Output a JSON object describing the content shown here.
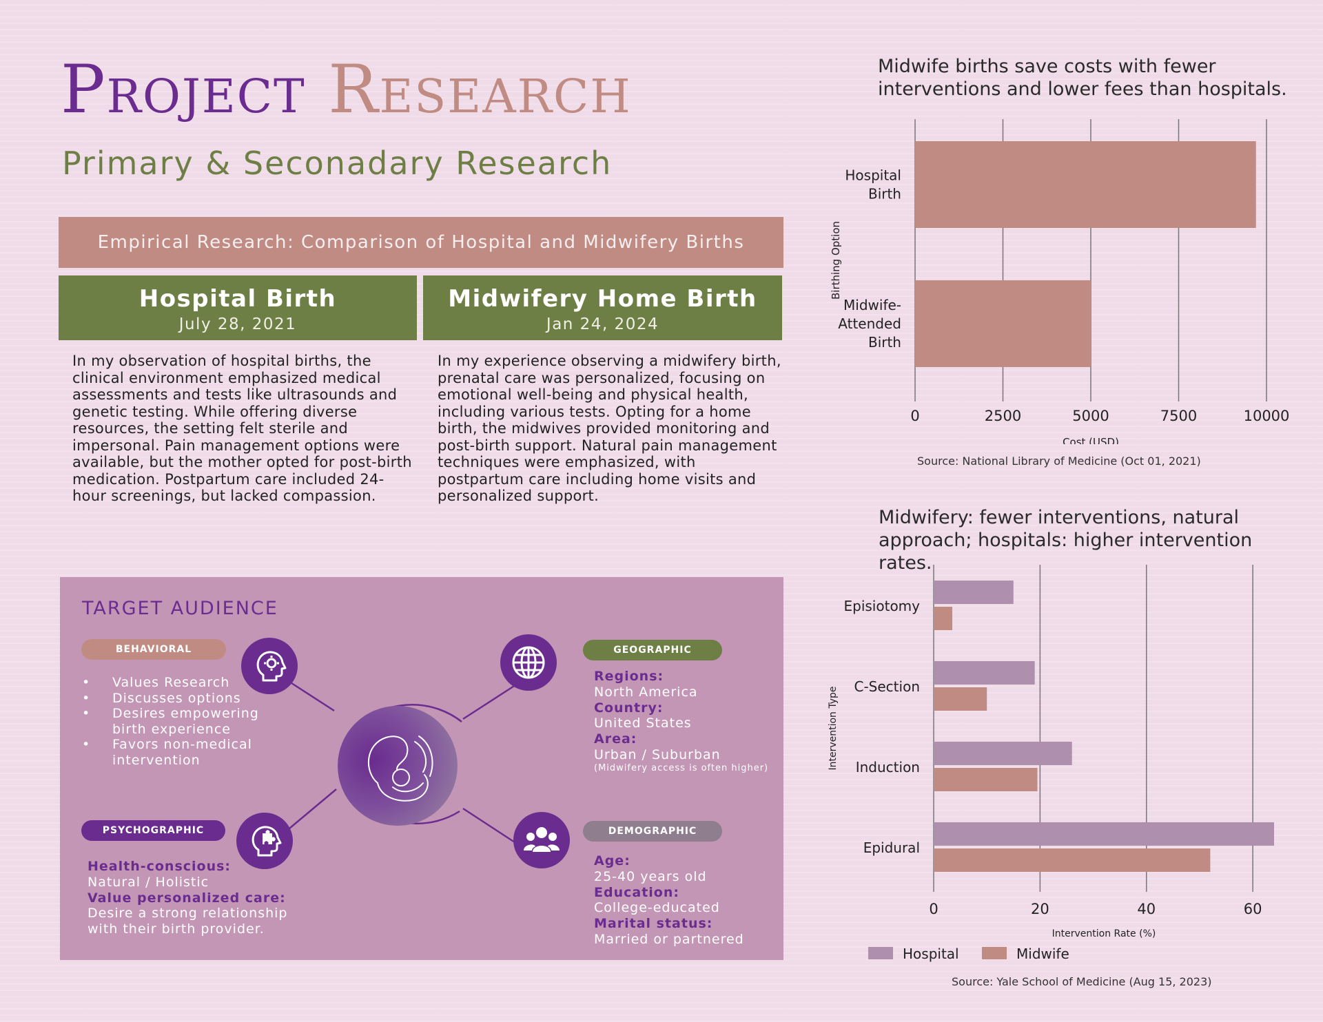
{
  "header": {
    "title_word1": "Project",
    "title_word2": "Research",
    "subtitle": "Primary & Seconadary Research"
  },
  "empirical": {
    "banner": "Empirical Research: Comparison of Hospital and Midwifery Births",
    "hospital": {
      "heading": "Hospital Birth",
      "date": "July 28, 2021",
      "text": "In my observation of hospital births, the clinical environment emphasized medical assessments and tests like ultrasounds and genetic testing. While offering diverse resources, the setting felt sterile and impersonal. Pain management options were available, but the mother opted for post-birth medication. Postpartum care included 24-hour screenings, but lacked compassion."
    },
    "midwifery": {
      "heading": "Midwifery Home Birth",
      "date": "Jan 24, 2024",
      "text": "In my experience observing a midwifery birth, prenatal care was personalized, focusing on emotional well-being and physical health, including various tests. Opting for a home birth, the midwives provided monitoring and post-birth support. Natural pain management techniques were emphasized, with postpartum care including home visits and personalized support."
    }
  },
  "target_audience": {
    "title": "TARGET AUDIENCE",
    "behavioral": {
      "label": "BEHAVIORAL",
      "items": [
        "Values Research",
        "Discusses options",
        "Desires empowering birth experience",
        "Favors non-medical intervention"
      ]
    },
    "geographic": {
      "label": "GEOGRAPHIC",
      "regions_label": "Regions:",
      "regions": "North America",
      "country_label": "Country:",
      "country": "United States",
      "area_label": "Area:",
      "area": "Urban / Suburban",
      "note": "(Midwifery access is often higher)"
    },
    "psychographic": {
      "label": "PSYCHOGRAPHIC",
      "health_label": "Health-conscious:",
      "health": "Natural / Holistic",
      "value_label": "Value personalized care:",
      "value": "Desire a strong relationship with their birth provider."
    },
    "demographic": {
      "label": "DEMOGRAPHIC",
      "age_label": "Age:",
      "age": "25-40 years old",
      "education_label": "Education:",
      "education": "College-educated",
      "marital_label": "Marital status:",
      "marital": "Married or partnered"
    },
    "icons": [
      "gear-head-icon",
      "globe-icon",
      "puzzle-head-icon",
      "group-icon",
      "mother-baby-icon"
    ]
  },
  "colors": {
    "purple": "#6a2c8e",
    "rose": "#c08b82",
    "olive": "#6e7f46",
    "mauve": "#c496b5",
    "hospital_bar": "#ae8fae",
    "grey_pill": "#8e7e8e"
  },
  "chart_data": [
    {
      "type": "bar",
      "orientation": "horizontal",
      "title": "Midwife births save costs with fewer interventions and lower fees than hospitals.",
      "categories": [
        "Hospital\nBirth",
        "Midwife-\nAttended\nBirth"
      ],
      "values": [
        9700,
        5000
      ],
      "xlabel": "Cost (USD)",
      "ylabel": "Birthing Option",
      "xlim": [
        0,
        10000
      ],
      "xticks": [
        0,
        2500,
        5000,
        7500,
        10000
      ],
      "grid": true,
      "color": "#c08b82",
      "source": "Source: National Library of Medicine (Oct 01, 2021)"
    },
    {
      "type": "bar",
      "orientation": "horizontal",
      "title": "Midwifery: fewer interventions, natural approach; hospitals: higher intervention rates.",
      "categories": [
        "Episiotomy",
        "C-Section",
        "Induction",
        "Epidural"
      ],
      "series": [
        {
          "name": "Hospital",
          "values": [
            15,
            19,
            26,
            64
          ],
          "color": "#ae8fae"
        },
        {
          "name": "Midwife",
          "values": [
            3.5,
            10,
            19.5,
            52
          ],
          "color": "#c08b82"
        }
      ],
      "xlabel": "Intervention Rate (%)",
      "ylabel": "Intervention Type",
      "xlim": [
        0,
        64
      ],
      "xticks": [
        0,
        20,
        40,
        60
      ],
      "grid": true,
      "legend": "bottom-left",
      "source": "Source: Yale School of Medicine (Aug 15, 2023)"
    }
  ]
}
